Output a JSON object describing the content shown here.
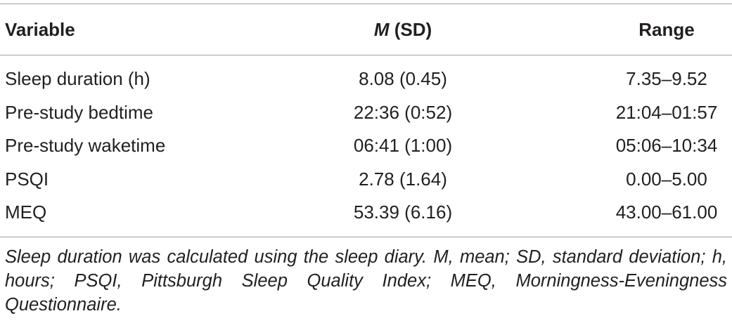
{
  "table": {
    "header": [
      "Variable",
      [
        "M",
        "(SD)"
      ],
      "Range"
    ],
    "rows": [
      [
        "Sleep duration (h)",
        "8.08 (0.45)",
        "7.35–9.52"
      ],
      [
        "Pre-study bedtime",
        "22:36 (0:52)",
        "21:04–01:57"
      ],
      [
        "Pre-study waketime",
        "06:41 (1:00)",
        "05:06–10:34"
      ],
      [
        "PSQI",
        "2.78 (1.64)",
        "0.00–5.00"
      ],
      [
        "MEQ",
        "53.39 (6.16)",
        "43.00–61.00"
      ]
    ],
    "footnote": "Sleep duration was calculated using the sleep diary. M, mean; SD, standard deviation; h, hours; PSQI, Pittsburgh Sleep Quality Index; MEQ, Morningness-Eveningness Questionnaire."
  }
}
